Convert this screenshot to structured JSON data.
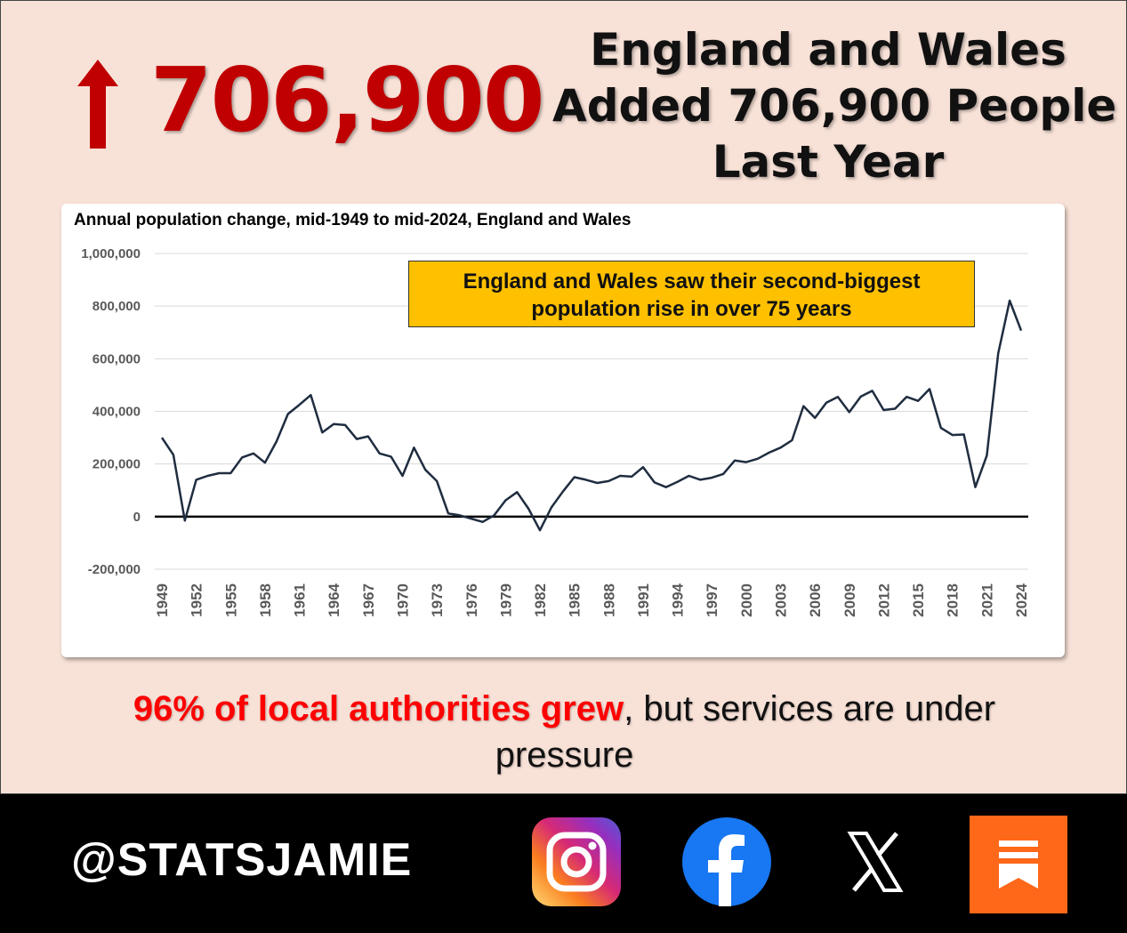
{
  "headline": {
    "big_number": "706,900",
    "lines": [
      "England and Wales",
      "Added 706,900 People",
      "Last Year"
    ]
  },
  "chart_data": {
    "type": "line",
    "title": "Annual population change, mid-1949 to mid-2024, England and Wales",
    "ylim": [
      -200000,
      1000000
    ],
    "y_ticks": [
      "1,000,000",
      "800,000",
      "600,000",
      "400,000",
      "200,000",
      "0",
      "-200,000"
    ],
    "x_tick_labels": [
      "1949",
      "1952",
      "1955",
      "1958",
      "1961",
      "1964",
      "1967",
      "1970",
      "1973",
      "1976",
      "1979",
      "1982",
      "1985",
      "1988",
      "1991",
      "1994",
      "1997",
      "2000",
      "2003",
      "2006",
      "2009",
      "2012",
      "2015",
      "2018",
      "2021",
      "2024"
    ],
    "grid": true,
    "series_color": "#1f2d40",
    "x": [
      1949,
      1950,
      1951,
      1952,
      1953,
      1954,
      1955,
      1956,
      1957,
      1958,
      1959,
      1960,
      1961,
      1962,
      1963,
      1964,
      1965,
      1966,
      1967,
      1968,
      1969,
      1970,
      1971,
      1972,
      1973,
      1974,
      1975,
      1976,
      1977,
      1978,
      1979,
      1980,
      1981,
      1982,
      1983,
      1984,
      1985,
      1986,
      1987,
      1988,
      1989,
      1990,
      1991,
      1992,
      1993,
      1994,
      1995,
      1996,
      1997,
      1998,
      1999,
      2000,
      2001,
      2002,
      2003,
      2004,
      2005,
      2006,
      2007,
      2008,
      2009,
      2010,
      2011,
      2012,
      2013,
      2014,
      2015,
      2016,
      2017,
      2018,
      2019,
      2020,
      2021,
      2022,
      2023,
      2024
    ],
    "values": [
      300000,
      235000,
      -15000,
      140000,
      155000,
      165000,
      165000,
      225000,
      240000,
      205000,
      285000,
      390000,
      425000,
      462000,
      320000,
      352000,
      348000,
      295000,
      305000,
      240000,
      228000,
      155000,
      262000,
      178000,
      135000,
      12000,
      5000,
      -8000,
      -20000,
      5000,
      62000,
      93000,
      30000,
      -52000,
      35000,
      95000,
      150000,
      140000,
      128000,
      135000,
      155000,
      152000,
      188000,
      130000,
      112000,
      132000,
      155000,
      140000,
      148000,
      162000,
      213000,
      207000,
      220000,
      243000,
      262000,
      290000,
      420000,
      375000,
      433000,
      455000,
      397000,
      456000,
      478000,
      405000,
      410000,
      455000,
      440000,
      485000,
      337000,
      310000,
      312000,
      112000,
      232000,
      620000,
      821000,
      706900
    ]
  },
  "callout": {
    "line1": "England and Wales saw their second-biggest",
    "line2": "population rise in over 75 years"
  },
  "caption": {
    "highlight": "96% of local authorities grew",
    "rest": ", but services are under",
    "line2": "pressure"
  },
  "footer": {
    "handle": "@STATSJAMIE",
    "icons": [
      "instagram-icon",
      "facebook-icon",
      "x-icon",
      "substack-icon"
    ]
  },
  "colors": {
    "accent_red": "#c00000",
    "callout_bg": "#ffc000",
    "background": "#f8e2d8",
    "substack_orange": "#ff6719",
    "facebook_blue": "#1877f2"
  }
}
